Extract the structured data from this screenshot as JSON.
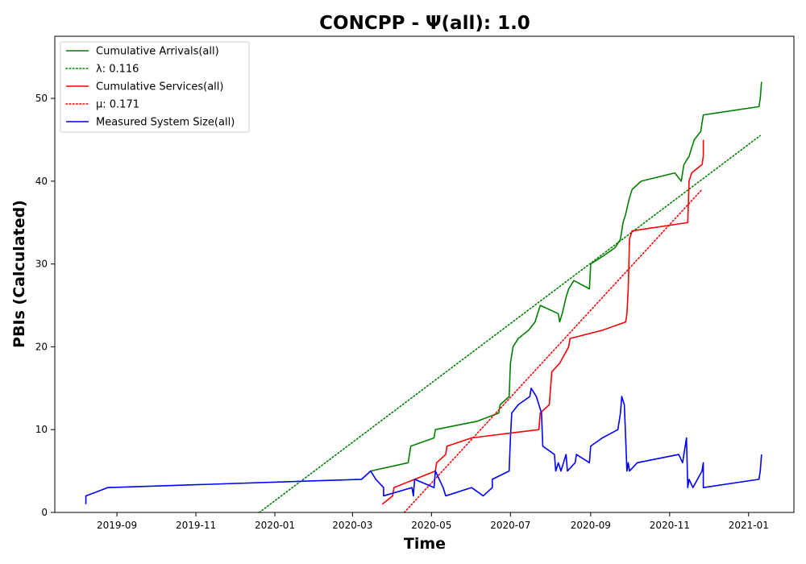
{
  "chart_data": {
    "type": "line",
    "title": "CONCPP -  Ψ(all): 1.0",
    "xlabel": "Time",
    "ylabel": "PBIs (Calculated)",
    "xlim": [
      "2019-07-15",
      "2021-02-05"
    ],
    "ylim": [
      0,
      57.5
    ],
    "x_ticks": [
      "2019-09",
      "2019-11",
      "2020-01",
      "2020-03",
      "2020-05",
      "2020-07",
      "2020-09",
      "2020-11",
      "2021-01"
    ],
    "y_ticks": [
      0,
      10,
      20,
      30,
      40,
      50
    ],
    "grid": false,
    "legend_position": "top-left",
    "series": [
      {
        "name": "Cumulative Arrivals(all)",
        "style": "solid",
        "color": "#008000",
        "points": [
          [
            "2020-03-15",
            5
          ],
          [
            "2020-04-13",
            6
          ],
          [
            "2020-04-15",
            8
          ],
          [
            "2020-05-03",
            9
          ],
          [
            "2020-05-04",
            10
          ],
          [
            "2020-06-05",
            11
          ],
          [
            "2020-06-22",
            12
          ],
          [
            "2020-06-23",
            13
          ],
          [
            "2020-06-30",
            14
          ],
          [
            "2020-07-01",
            18
          ],
          [
            "2020-07-03",
            20
          ],
          [
            "2020-07-07",
            21
          ],
          [
            "2020-07-15",
            22
          ],
          [
            "2020-07-20",
            23
          ],
          [
            "2020-07-24",
            25
          ],
          [
            "2020-08-07",
            24
          ],
          [
            "2020-08-08",
            23
          ],
          [
            "2020-08-10",
            24
          ],
          [
            "2020-08-13",
            26
          ],
          [
            "2020-08-15",
            27
          ],
          [
            "2020-08-19",
            28
          ],
          [
            "2020-08-31",
            27
          ],
          [
            "2020-09-01",
            30
          ],
          [
            "2020-09-11",
            31
          ],
          [
            "2020-09-20",
            32
          ],
          [
            "2020-09-24",
            33
          ],
          [
            "2020-09-26",
            35
          ],
          [
            "2020-09-28",
            36
          ],
          [
            "2020-10-01",
            38
          ],
          [
            "2020-10-03",
            39
          ],
          [
            "2020-10-10",
            40
          ],
          [
            "2020-11-05",
            41
          ],
          [
            "2020-11-10",
            40
          ],
          [
            "2020-11-12",
            42
          ],
          [
            "2020-11-16",
            43
          ],
          [
            "2020-11-20",
            45
          ],
          [
            "2020-11-25",
            46
          ],
          [
            "2020-11-27",
            48
          ],
          [
            "2021-01-09",
            49
          ],
          [
            "2021-01-10",
            50
          ],
          [
            "2021-01-11",
            52
          ]
        ]
      },
      {
        "name": "λ: 0.116",
        "style": "dotted",
        "color": "#008000",
        "points": [
          [
            "2019-12-20",
            0
          ],
          [
            "2021-01-10",
            45.5
          ]
        ]
      },
      {
        "name": "Cumulative Services(all)",
        "style": "solid",
        "color": "#ff0000",
        "points": [
          [
            "2020-03-24",
            1
          ],
          [
            "2020-04-01",
            2
          ],
          [
            "2020-04-02",
            3
          ],
          [
            "2020-04-18",
            4
          ],
          [
            "2020-05-04",
            5
          ],
          [
            "2020-05-05",
            6
          ],
          [
            "2020-05-12",
            7
          ],
          [
            "2020-05-13",
            8
          ],
          [
            "2020-06-01",
            9
          ],
          [
            "2020-07-23",
            10
          ],
          [
            "2020-07-24",
            12
          ],
          [
            "2020-07-31",
            13
          ],
          [
            "2020-08-01",
            15
          ],
          [
            "2020-08-02",
            17
          ],
          [
            "2020-08-08",
            18
          ],
          [
            "2020-08-15",
            20
          ],
          [
            "2020-08-16",
            21
          ],
          [
            "2020-09-10",
            22
          ],
          [
            "2020-09-28",
            23
          ],
          [
            "2020-09-29",
            24
          ],
          [
            "2020-09-30",
            27
          ],
          [
            "2020-10-01",
            33
          ],
          [
            "2020-10-03",
            34
          ],
          [
            "2020-11-15",
            35
          ],
          [
            "2020-11-16",
            40
          ],
          [
            "2020-11-18",
            41
          ],
          [
            "2020-11-26",
            42
          ],
          [
            "2020-11-27",
            43
          ],
          [
            "2020-11-27",
            45
          ]
        ]
      },
      {
        "name": "μ: 0.171",
        "style": "dotted",
        "color": "#ff0000",
        "points": [
          [
            "2020-04-10",
            0
          ],
          [
            "2020-11-26",
            39
          ]
        ]
      },
      {
        "name": "Measured System Size(all)",
        "style": "solid",
        "color": "#0000ff",
        "points": [
          [
            "2019-08-08",
            1
          ],
          [
            "2019-08-08",
            2
          ],
          [
            "2019-08-25",
            3
          ],
          [
            "2020-03-08",
            4
          ],
          [
            "2020-03-15",
            5
          ],
          [
            "2020-03-19",
            4
          ],
          [
            "2020-03-25",
            3
          ],
          [
            "2020-03-25",
            2
          ],
          [
            "2020-04-16",
            3
          ],
          [
            "2020-04-17",
            2
          ],
          [
            "2020-04-18",
            4
          ],
          [
            "2020-05-03",
            3
          ],
          [
            "2020-05-04",
            5
          ],
          [
            "2020-05-10",
            3
          ],
          [
            "2020-05-12",
            2
          ],
          [
            "2020-06-01",
            3
          ],
          [
            "2020-06-10",
            2
          ],
          [
            "2020-06-17",
            3
          ],
          [
            "2020-06-17",
            4
          ],
          [
            "2020-06-30",
            5
          ],
          [
            "2020-07-01",
            9
          ],
          [
            "2020-07-02",
            12
          ],
          [
            "2020-07-07",
            13
          ],
          [
            "2020-07-16",
            14
          ],
          [
            "2020-07-17",
            15
          ],
          [
            "2020-07-21",
            14
          ],
          [
            "2020-07-23",
            13
          ],
          [
            "2020-07-25",
            12
          ],
          [
            "2020-07-26",
            8
          ],
          [
            "2020-08-04",
            7
          ],
          [
            "2020-08-05",
            5
          ],
          [
            "2020-08-07",
            6
          ],
          [
            "2020-08-09",
            5
          ],
          [
            "2020-08-13",
            7
          ],
          [
            "2020-08-14",
            5
          ],
          [
            "2020-08-20",
            6
          ],
          [
            "2020-08-21",
            7
          ],
          [
            "2020-08-31",
            6
          ],
          [
            "2020-09-01",
            8
          ],
          [
            "2020-09-10",
            9
          ],
          [
            "2020-09-22",
            10
          ],
          [
            "2020-09-24",
            12
          ],
          [
            "2020-09-25",
            14
          ],
          [
            "2020-09-27",
            13
          ],
          [
            "2020-09-28",
            9
          ],
          [
            "2020-09-29",
            5
          ],
          [
            "2020-09-30",
            6
          ],
          [
            "2020-10-01",
            5
          ],
          [
            "2020-10-07",
            6
          ],
          [
            "2020-11-08",
            7
          ],
          [
            "2020-11-11",
            6
          ],
          [
            "2020-11-13",
            8
          ],
          [
            "2020-11-14",
            9
          ],
          [
            "2020-11-15",
            3
          ],
          [
            "2020-11-16",
            4
          ],
          [
            "2020-11-19",
            3
          ],
          [
            "2020-11-26",
            5
          ],
          [
            "2020-11-27",
            6
          ],
          [
            "2020-11-27",
            3
          ],
          [
            "2021-01-09",
            4
          ],
          [
            "2021-01-10",
            5
          ],
          [
            "2021-01-11",
            7
          ]
        ]
      }
    ]
  }
}
